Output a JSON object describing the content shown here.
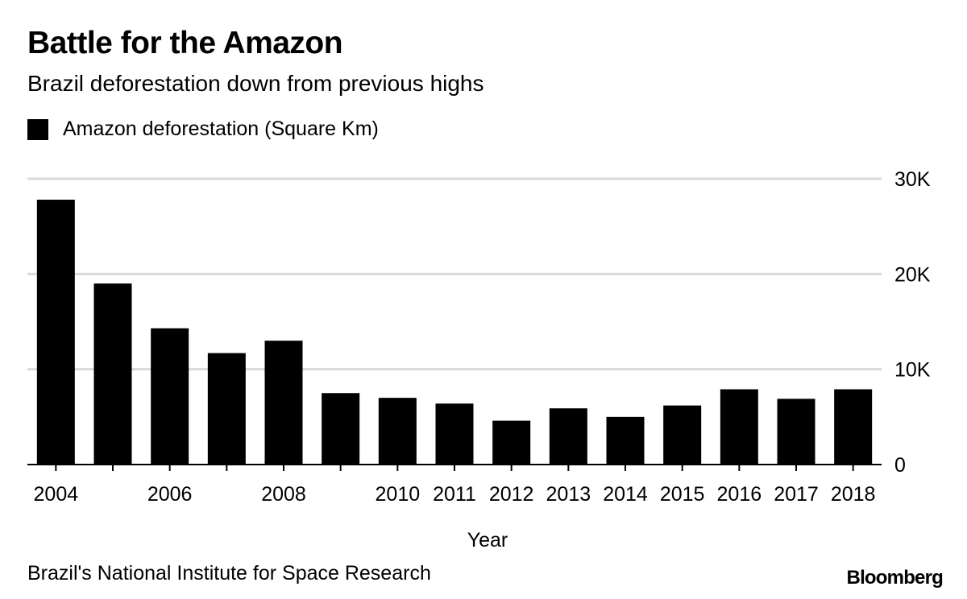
{
  "header": {
    "title": "Battle for the Amazon",
    "subtitle": "Brazil deforestation down from previous highs"
  },
  "footer": {
    "source": "Brazil's National Institute for Space Research",
    "brand": "Bloomberg"
  },
  "chart_data": {
    "type": "bar",
    "title": "Battle for the Amazon",
    "subtitle": "Brazil deforestation down from previous highs",
    "xlabel": "Year",
    "ylabel": "",
    "legend": [
      "Amazon deforestation (Square Km)"
    ],
    "legend_position": "top-left",
    "categories": [
      "2004",
      "2005",
      "2006",
      "2007",
      "2008",
      "2009",
      "2010",
      "2011",
      "2012",
      "2013",
      "2014",
      "2015",
      "2016",
      "2017",
      "2018"
    ],
    "tick_labels": [
      "2004",
      "",
      "2006",
      "",
      "2008",
      "",
      "2010",
      "2011",
      "2012",
      "2013",
      "2014",
      "2015",
      "2016",
      "2017",
      "2018"
    ],
    "series": [
      {
        "name": "Amazon deforestation (Square Km)",
        "values": [
          27800,
          19000,
          14300,
          11700,
          13000,
          7500,
          7000,
          6400,
          4600,
          5900,
          5000,
          6200,
          7900,
          6900,
          7900
        ]
      }
    ],
    "ylim": [
      0,
      30000
    ],
    "yticks": [
      0,
      10000,
      20000,
      30000
    ],
    "ytick_labels": [
      "0",
      "10K",
      "20K",
      "30K"
    ],
    "y_axis_side": "right",
    "grid": true,
    "colors": {
      "bar": "#000000",
      "grid": "#d9d9d9",
      "axis": "#000000"
    }
  }
}
